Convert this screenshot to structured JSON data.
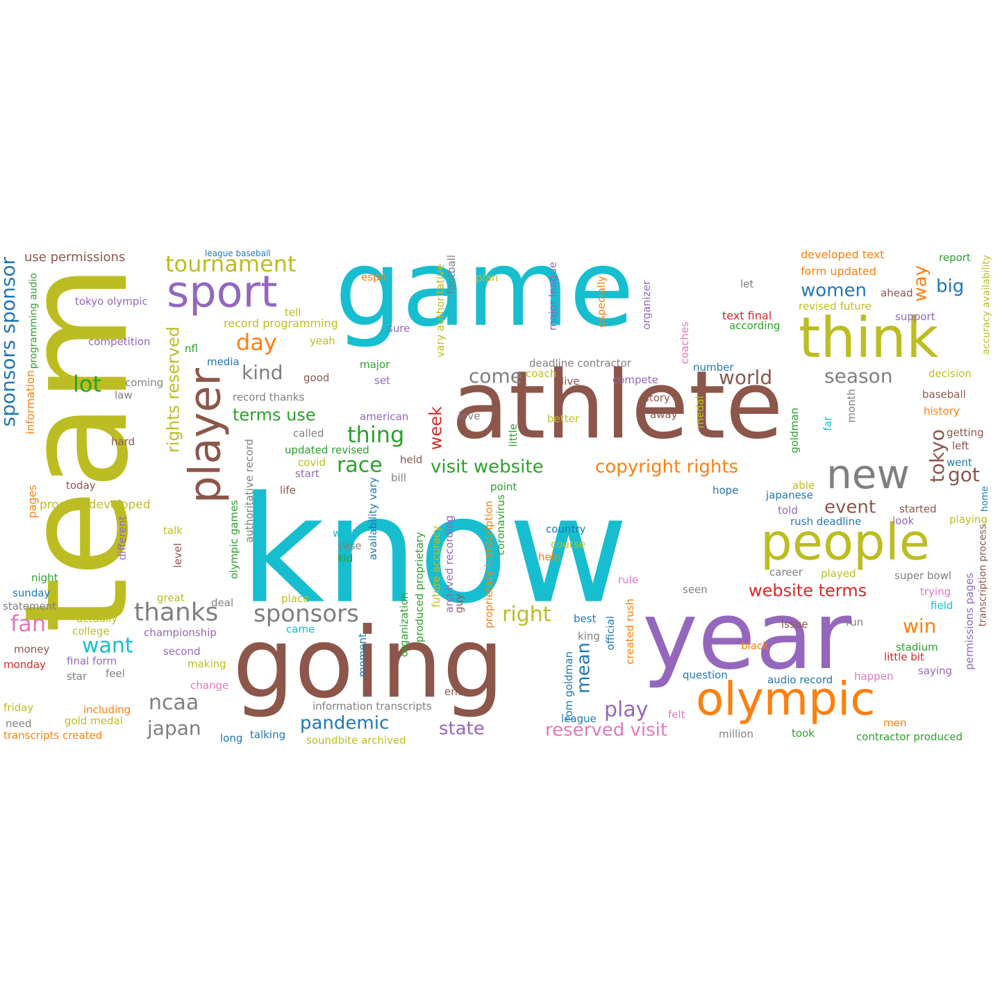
{
  "palette": {
    "cyan": "#17becf",
    "olive": "#bcbd22",
    "brown": "#8c564b",
    "purple": "#9467bd",
    "orange": "#ff7f0e",
    "gray": "#7f7f7f",
    "blue": "#1f77b4",
    "green": "#2ca02c",
    "red": "#d62728",
    "pink": "#e377c2"
  },
  "words": [
    {
      "text": "know",
      "color": "cyan"
    },
    {
      "text": "game",
      "color": "cyan"
    },
    {
      "text": "team",
      "color": "olive"
    },
    {
      "text": "athlete",
      "color": "brown"
    },
    {
      "text": "year",
      "color": "purple"
    },
    {
      "text": "going",
      "color": "brown"
    },
    {
      "text": "think",
      "color": "olive"
    },
    {
      "text": "people",
      "color": "olive"
    },
    {
      "text": "olympic",
      "color": "orange"
    },
    {
      "text": "new",
      "color": "gray"
    },
    {
      "text": "sport",
      "color": "purple"
    },
    {
      "text": "player",
      "color": "brown"
    },
    {
      "text": "sponsors sponsor",
      "color": "blue"
    },
    {
      "text": "thanks",
      "color": "gray"
    },
    {
      "text": "sponsors",
      "color": "gray"
    },
    {
      "text": "tournament",
      "color": "olive"
    },
    {
      "text": "day",
      "color": "orange"
    },
    {
      "text": "kind",
      "color": "gray"
    },
    {
      "text": "lot",
      "color": "green"
    },
    {
      "text": "come",
      "color": "gray"
    },
    {
      "text": "world",
      "color": "brown"
    },
    {
      "text": "season",
      "color": "gray"
    },
    {
      "text": "women",
      "color": "blue"
    },
    {
      "text": "big",
      "color": "blue"
    },
    {
      "text": "way",
      "color": "orange"
    },
    {
      "text": "thing",
      "color": "green"
    },
    {
      "text": "race",
      "color": "green"
    },
    {
      "text": "terms use",
      "color": "green"
    },
    {
      "text": "week",
      "color": "red"
    },
    {
      "text": "visit website",
      "color": "green"
    },
    {
      "text": "copyright rights",
      "color": "orange"
    },
    {
      "text": "event",
      "color": "brown"
    },
    {
      "text": "got",
      "color": "brown"
    },
    {
      "text": "tokyo",
      "color": "brown"
    },
    {
      "text": "rights reserved",
      "color": "olive"
    },
    {
      "text": "fan",
      "color": "pink"
    },
    {
      "text": "want",
      "color": "cyan"
    },
    {
      "text": "right",
      "color": "olive"
    },
    {
      "text": "website terms",
      "color": "red"
    },
    {
      "text": "win",
      "color": "orange"
    },
    {
      "text": "ncaa",
      "color": "gray"
    },
    {
      "text": "japan",
      "color": "gray"
    },
    {
      "text": "pandemic",
      "color": "blue"
    },
    {
      "text": "state",
      "color": "purple"
    },
    {
      "text": "reserved visit",
      "color": "pink"
    },
    {
      "text": "play",
      "color": "purple"
    },
    {
      "text": "mean",
      "color": "blue"
    },
    {
      "text": "use permissions",
      "color": "brown"
    },
    {
      "text": "league baseball",
      "color": "blue"
    },
    {
      "text": "tokyo olympic",
      "color": "purple"
    },
    {
      "text": "competition",
      "color": "purple"
    },
    {
      "text": "programming audio",
      "color": "green"
    },
    {
      "text": "information",
      "color": "orange"
    },
    {
      "text": "pages",
      "color": "orange"
    },
    {
      "text": "tell",
      "color": "olive"
    },
    {
      "text": "record programming",
      "color": "olive"
    },
    {
      "text": "yeah",
      "color": "olive"
    },
    {
      "text": "nfl",
      "color": "green"
    },
    {
      "text": "media",
      "color": "blue"
    },
    {
      "text": "coming",
      "color": "gray"
    },
    {
      "text": "good",
      "color": "brown"
    },
    {
      "text": "law",
      "color": "gray"
    },
    {
      "text": "record thanks",
      "color": "gray"
    },
    {
      "text": "hard",
      "color": "brown"
    },
    {
      "text": "today",
      "color": "brown"
    },
    {
      "text": "process developed",
      "color": "olive"
    },
    {
      "text": "espn",
      "color": "orange"
    },
    {
      "text": "sure",
      "color": "purple"
    },
    {
      "text": "major",
      "color": "green"
    },
    {
      "text": "set",
      "color": "purple"
    },
    {
      "text": "american",
      "color": "purple"
    },
    {
      "text": "called",
      "color": "gray"
    },
    {
      "text": "updated revised",
      "color": "green"
    },
    {
      "text": "covid",
      "color": "olive"
    },
    {
      "text": "start",
      "color": "purple"
    },
    {
      "text": "held",
      "color": "brown"
    },
    {
      "text": "bill",
      "color": "gray"
    },
    {
      "text": "life",
      "color": "brown"
    },
    {
      "text": "plan",
      "color": "olive"
    },
    {
      "text": "vary authoritative",
      "color": "olive"
    },
    {
      "text": "football",
      "color": "gray"
    },
    {
      "text": "love",
      "color": "gray"
    },
    {
      "text": "little",
      "color": "green"
    },
    {
      "text": "point",
      "color": "green"
    },
    {
      "text": "let",
      "color": "gray"
    },
    {
      "text": "especially",
      "color": "orange"
    },
    {
      "text": "organizer",
      "color": "purple"
    },
    {
      "text": "major league",
      "color": "purple"
    },
    {
      "text": "deadline contractor",
      "color": "gray"
    },
    {
      "text": "coach",
      "color": "olive"
    },
    {
      "text": "live",
      "color": "brown"
    },
    {
      "text": "compete",
      "color": "purple"
    },
    {
      "text": "coaches",
      "color": "pink"
    },
    {
      "text": "story",
      "color": "brown"
    },
    {
      "text": "away",
      "color": "brown"
    },
    {
      "text": "better",
      "color": "olive"
    },
    {
      "text": "medal",
      "color": "olive"
    },
    {
      "text": "number",
      "color": "blue"
    },
    {
      "text": "text final",
      "color": "red"
    },
    {
      "text": "according",
      "color": "green"
    },
    {
      "text": "developed text",
      "color": "orange"
    },
    {
      "text": "form updated",
      "color": "orange"
    },
    {
      "text": "report",
      "color": "green"
    },
    {
      "text": "ahead",
      "color": "brown"
    },
    {
      "text": "revised future",
      "color": "olive"
    },
    {
      "text": "support",
      "color": "purple"
    },
    {
      "text": "accuracy availability",
      "color": "olive"
    },
    {
      "text": "decision",
      "color": "olive"
    },
    {
      "text": "baseball",
      "color": "brown"
    },
    {
      "text": "history",
      "color": "orange"
    },
    {
      "text": "getting",
      "color": "brown"
    },
    {
      "text": "left",
      "color": "brown"
    },
    {
      "text": "went",
      "color": "blue"
    },
    {
      "text": "month",
      "color": "gray"
    },
    {
      "text": "far",
      "color": "cyan"
    },
    {
      "text": "goldman",
      "color": "green"
    },
    {
      "text": "able",
      "color": "olive"
    },
    {
      "text": "hope",
      "color": "blue"
    },
    {
      "text": "japanese",
      "color": "blue"
    },
    {
      "text": "told",
      "color": "purple"
    },
    {
      "text": "started",
      "color": "brown"
    },
    {
      "text": "home",
      "color": "blue"
    },
    {
      "text": "playing",
      "color": "olive"
    },
    {
      "text": "rush deadline",
      "color": "blue"
    },
    {
      "text": "look",
      "color": "purple"
    },
    {
      "text": "country",
      "color": "blue"
    },
    {
      "text": "course",
      "color": "olive"
    },
    {
      "text": "help",
      "color": "orange"
    },
    {
      "text": "rule",
      "color": "pink"
    },
    {
      "text": "career",
      "color": "gray"
    },
    {
      "text": "played",
      "color": "olive"
    },
    {
      "text": "super bowl",
      "color": "gray"
    },
    {
      "text": "seen",
      "color": "gray"
    },
    {
      "text": "trying",
      "color": "pink"
    },
    {
      "text": "field",
      "color": "cyan"
    },
    {
      "text": "permissions pages",
      "color": "purple"
    },
    {
      "text": "transcription process",
      "color": "brown"
    },
    {
      "text": "work",
      "color": "cyan"
    },
    {
      "text": "case",
      "color": "gray"
    },
    {
      "text": "kid",
      "color": "green"
    },
    {
      "text": "availability vary",
      "color": "blue"
    },
    {
      "text": "talk",
      "color": "olive"
    },
    {
      "text": "level",
      "color": "brown"
    },
    {
      "text": "olympic games",
      "color": "green"
    },
    {
      "text": "authoritative record",
      "color": "gray"
    },
    {
      "text": "different",
      "color": "purple"
    },
    {
      "text": "night",
      "color": "green"
    },
    {
      "text": "sunday",
      "color": "blue"
    },
    {
      "text": "statement",
      "color": "gray"
    },
    {
      "text": "great",
      "color": "olive"
    },
    {
      "text": "deal",
      "color": "gray"
    },
    {
      "text": "place",
      "color": "olive"
    },
    {
      "text": "actually",
      "color": "olive"
    },
    {
      "text": "college",
      "color": "olive"
    },
    {
      "text": "championship",
      "color": "purple"
    },
    {
      "text": "came",
      "color": "cyan"
    },
    {
      "text": "organization",
      "color": "green"
    },
    {
      "text": "produced proprietary",
      "color": "green"
    },
    {
      "text": "future accuracy",
      "color": "olive"
    },
    {
      "text": "archived recording",
      "color": "purple"
    },
    {
      "text": "guy",
      "color": "brown"
    },
    {
      "text": "proprietary transcription",
      "color": "orange"
    },
    {
      "text": "coronavirus",
      "color": "green"
    },
    {
      "text": "moment",
      "color": "blue"
    },
    {
      "text": "best",
      "color": "blue"
    },
    {
      "text": "king",
      "color": "gray"
    },
    {
      "text": "tom goldman",
      "color": "blue"
    },
    {
      "text": "official",
      "color": "blue"
    },
    {
      "text": "created rush",
      "color": "orange"
    },
    {
      "text": "issue",
      "color": "brown"
    },
    {
      "text": "run",
      "color": "gray"
    },
    {
      "text": "stadium",
      "color": "green"
    },
    {
      "text": "black",
      "color": "orange"
    },
    {
      "text": "little bit",
      "color": "red"
    },
    {
      "text": "question",
      "color": "blue"
    },
    {
      "text": "happen",
      "color": "pink"
    },
    {
      "text": "saying",
      "color": "purple"
    },
    {
      "text": "audio record",
      "color": "blue"
    },
    {
      "text": "money",
      "color": "brown"
    },
    {
      "text": "monday",
      "color": "red"
    },
    {
      "text": "final form",
      "color": "purple"
    },
    {
      "text": "second",
      "color": "purple"
    },
    {
      "text": "star",
      "color": "gray"
    },
    {
      "text": "feel",
      "color": "gray"
    },
    {
      "text": "making",
      "color": "olive"
    },
    {
      "text": "change",
      "color": "pink"
    },
    {
      "text": "friday",
      "color": "olive"
    },
    {
      "text": "including",
      "color": "orange"
    },
    {
      "text": "gold medal",
      "color": "olive"
    },
    {
      "text": "need",
      "color": "gray"
    },
    {
      "text": "transcripts created",
      "color": "orange"
    },
    {
      "text": "long",
      "color": "blue"
    },
    {
      "text": "talking",
      "color": "blue"
    },
    {
      "text": "soundbite archived",
      "color": "olive"
    },
    {
      "text": "information transcripts",
      "color": "gray"
    },
    {
      "text": "end",
      "color": "brown"
    },
    {
      "text": "league",
      "color": "blue"
    },
    {
      "text": "felt",
      "color": "pink"
    },
    {
      "text": "million",
      "color": "gray"
    },
    {
      "text": "took",
      "color": "green"
    },
    {
      "text": "men",
      "color": "orange"
    },
    {
      "text": "contractor produced",
      "color": "green"
    }
  ]
}
